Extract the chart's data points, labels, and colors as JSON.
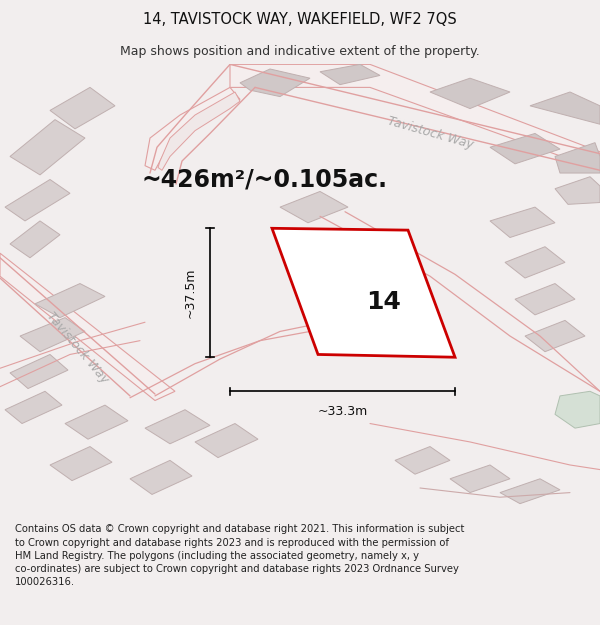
{
  "title": "14, TAVISTOCK WAY, WAKEFIELD, WF2 7QS",
  "subtitle": "Map shows position and indicative extent of the property.",
  "footer": "Contains OS data © Crown copyright and database right 2021. This information is subject\nto Crown copyright and database rights 2023 and is reproduced with the permission of\nHM Land Registry. The polygons (including the associated geometry, namely x, y\nco-ordinates) are subject to Crown copyright and database rights 2023 Ordnance Survey\n100026316.",
  "area_text": "~426m²/~0.105ac.",
  "number_label": "14",
  "dim_height": "~37.5m",
  "dim_width": "~33.3m",
  "bg_color": "#f2eeee",
  "map_bg": "#ffffff",
  "road_color": "#e8a8a8",
  "block_fill": "#d8d0d0",
  "block_edge": "#c0b0b0",
  "property_edge": "#cc0000",
  "title_fontsize": 10.5,
  "subtitle_fontsize": 9,
  "footer_fontsize": 7.2,
  "area_fontsize": 17,
  "label_fontsize": 18,
  "dim_fontsize": 9,
  "road_label_color": "#aaaaaa",
  "road_label_fontsize": 9
}
